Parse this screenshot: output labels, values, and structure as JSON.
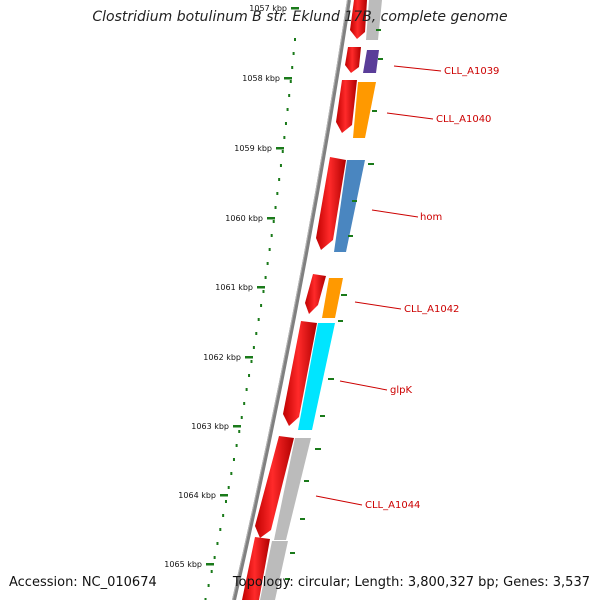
{
  "title": "Clostridium botulinum B str. Eklund 17B, complete genome",
  "accession": "Accession: NC_010674",
  "summary": "Topology: circular; Length: 3,800,327 bp; Genes: 3,537",
  "colors": {
    "backbone": "#808080",
    "forward_cds": "#ee0000",
    "tick": "#1a7a1a",
    "gene_label": "#cc0000",
    "grey_cds": "#bbbbbb",
    "orange_cds": "#ff9900",
    "purple_cds": "#5a3d99",
    "steelblue_cds": "#4a86c0",
    "cyan_cds": "#00e5ff"
  },
  "ticks": [
    "1057 kbp",
    "1058 kbp",
    "1059 kbp",
    "1060 kbp",
    "1061 kbp",
    "1062 kbp",
    "1063 kbp",
    "1064 kbp",
    "1065 kbp"
  ],
  "genes": [
    {
      "label": "CLL_A1039",
      "color": "purple"
    },
    {
      "label": "CLL_A1040",
      "color": "orange"
    },
    {
      "label": "hom",
      "color": "steelblue"
    },
    {
      "label": "CLL_A1042",
      "color": "orange"
    },
    {
      "label": "glpK",
      "color": "cyan"
    },
    {
      "label": "CLL_A1044",
      "color": "grey"
    }
  ]
}
